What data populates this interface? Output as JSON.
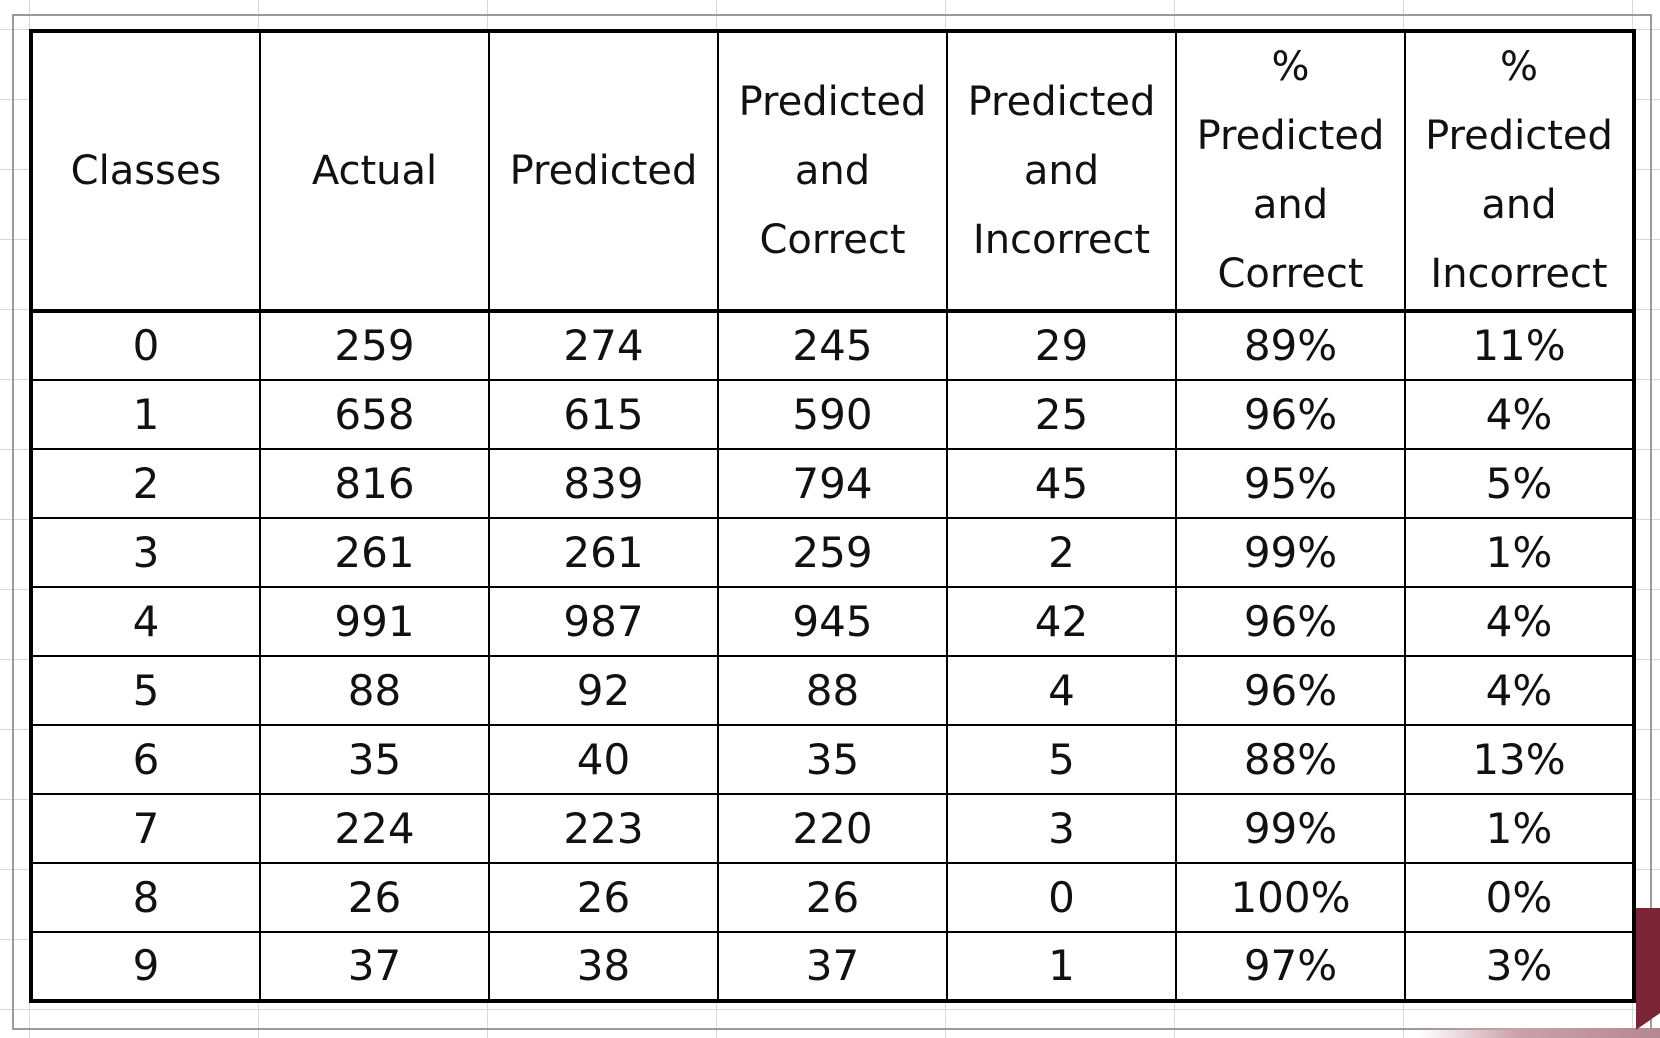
{
  "table": {
    "headers": [
      "Classes",
      "Actual",
      "Predicted",
      "Predicted\nand\nCorrect",
      "Predicted\nand\nIncorrect",
      "%\nPredicted\nand\nCorrect",
      "%\nPredicted\nand\nIncorrect"
    ],
    "rows": [
      [
        "0",
        "259",
        "274",
        "245",
        "29",
        "89%",
        "11%"
      ],
      [
        "1",
        "658",
        "615",
        "590",
        "25",
        "96%",
        "4%"
      ],
      [
        "2",
        "816",
        "839",
        "794",
        "45",
        "95%",
        "5%"
      ],
      [
        "3",
        "261",
        "261",
        "259",
        "2",
        "99%",
        "1%"
      ],
      [
        "4",
        "991",
        "987",
        "945",
        "42",
        "96%",
        "4%"
      ],
      [
        "5",
        "88",
        "92",
        "88",
        "4",
        "96%",
        "4%"
      ],
      [
        "6",
        "35",
        "40",
        "35",
        "5",
        "88%",
        "13%"
      ],
      [
        "7",
        "224",
        "223",
        "220",
        "3",
        "99%",
        "1%"
      ],
      [
        "8",
        "26",
        "26",
        "26",
        "0",
        "100%",
        "0%"
      ],
      [
        "9",
        "37",
        "38",
        "37",
        "1",
        "97%",
        "3%"
      ]
    ]
  },
  "colors": {
    "grid": "#d8d8d8",
    "border": "#000000",
    "accent": "#7a2435"
  }
}
